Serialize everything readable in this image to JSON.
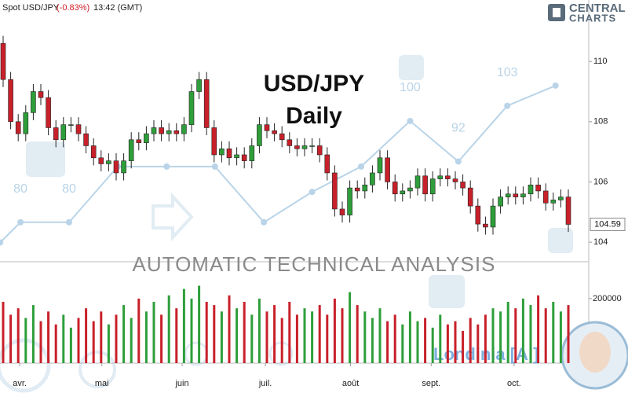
{
  "chart_data": {
    "type": "candlestick",
    "symbol": "Spot USD/JPY",
    "change": "(-0.83%)",
    "time": "13:42 (GMT)",
    "title": "USD/JPY",
    "subtitle": "Daily",
    "banner": "AUTOMATIC TECHNICAL ANALYSIS",
    "brand": [
      "CENTRAL",
      "CHARTS"
    ],
    "assistant": "Londinia [AI]",
    "last_price": 104.59,
    "ylim": [
      103.35,
      112.04
    ],
    "yticks": [
      104,
      106,
      108,
      110
    ],
    "xticks": [
      {
        "value": 2.2,
        "label": "avr."
      },
      {
        "value": 13.1,
        "label": "mai"
      },
      {
        "value": 23.75,
        "label": "juin"
      },
      {
        "value": 34.8,
        "label": "juil."
      },
      {
        "value": 46.1,
        "label": "août"
      },
      {
        "value": 56.8,
        "label": "sept."
      },
      {
        "value": 67.8,
        "label": "oct."
      }
    ],
    "up_color": "#2e9e3a",
    "down_color": "#c8202a",
    "open": [
      110.6,
      109.4,
      108.0,
      107.6,
      108.3,
      109.0,
      108.8,
      107.8,
      107.4,
      107.9,
      107.9,
      107.6,
      107.2,
      106.8,
      106.6,
      106.7,
      106.3,
      106.7,
      107.4,
      107.3,
      107.6,
      107.8,
      107.6,
      107.7,
      107.6,
      107.9,
      109.0,
      109.4,
      107.8,
      106.9,
      107.1,
      106.8,
      106.9,
      106.7,
      107.2,
      107.9,
      107.7,
      107.6,
      107.4,
      107.2,
      107.1,
      107.2,
      107.2,
      106.9,
      106.3,
      105.1,
      104.9,
      105.8,
      105.7,
      105.9,
      106.3,
      106.8,
      106.0,
      105.6,
      105.7,
      105.8,
      106.2,
      105.6,
      106.1,
      106.2,
      106.1,
      106.0,
      105.8,
      105.2,
      104.6,
      104.5,
      105.2,
      105.5,
      105.6,
      105.5,
      105.6,
      105.9,
      105.7,
      105.3,
      105.4,
      105.5
    ],
    "high": [
      110.85,
      109.65,
      108.25,
      108.55,
      109.25,
      109.25,
      109.05,
      108.05,
      108.15,
      108.15,
      108.15,
      107.85,
      107.45,
      107.05,
      106.95,
      106.95,
      106.95,
      107.65,
      107.65,
      107.85,
      108.05,
      108.05,
      107.95,
      107.95,
      108.15,
      109.25,
      109.65,
      109.65,
      108.05,
      107.35,
      107.35,
      107.15,
      107.15,
      107.45,
      108.15,
      108.15,
      107.95,
      107.85,
      107.65,
      107.45,
      107.45,
      107.45,
      107.45,
      107.15,
      106.55,
      105.35,
      106.05,
      106.05,
      106.15,
      106.55,
      107.05,
      107.05,
      106.25,
      105.95,
      106.05,
      106.45,
      106.45,
      106.35,
      106.45,
      106.45,
      106.35,
      106.25,
      106.05,
      105.45,
      104.85,
      105.45,
      105.75,
      105.85,
      105.85,
      105.85,
      106.15,
      106.15,
      105.95,
      105.65,
      105.75,
      105.75
    ],
    "low": [
      109.15,
      107.75,
      107.35,
      107.35,
      108.05,
      108.55,
      107.55,
      107.15,
      107.15,
      107.65,
      107.35,
      106.95,
      106.55,
      106.35,
      106.35,
      106.05,
      106.05,
      106.45,
      107.05,
      107.05,
      107.35,
      107.35,
      107.35,
      107.35,
      107.35,
      107.65,
      108.75,
      107.55,
      106.65,
      106.65,
      106.55,
      106.55,
      106.45,
      106.45,
      106.95,
      107.45,
      107.35,
      107.15,
      106.95,
      106.85,
      106.85,
      106.95,
      106.65,
      106.05,
      104.85,
      104.65,
      104.65,
      105.45,
      105.45,
      105.65,
      106.05,
      105.75,
      105.35,
      105.35,
      105.45,
      105.55,
      105.35,
      105.35,
      105.85,
      105.85,
      105.75,
      105.55,
      104.95,
      104.35,
      104.25,
      104.25,
      104.95,
      105.25,
      105.25,
      105.25,
      105.35,
      105.45,
      105.05,
      105.05,
      105.15,
      104.34
    ],
    "close": [
      109.4,
      108.0,
      107.6,
      108.3,
      109.0,
      108.8,
      107.8,
      107.4,
      107.9,
      107.9,
      107.6,
      107.2,
      106.8,
      106.6,
      106.7,
      106.3,
      106.7,
      107.4,
      107.3,
      107.6,
      107.8,
      107.6,
      107.7,
      107.6,
      107.9,
      109.0,
      109.4,
      107.8,
      106.9,
      107.1,
      106.8,
      106.9,
      106.7,
      107.2,
      107.9,
      107.7,
      107.6,
      107.4,
      107.2,
      107.1,
      107.2,
      107.2,
      106.9,
      106.3,
      105.1,
      104.9,
      105.8,
      105.7,
      105.9,
      106.3,
      106.8,
      106.0,
      105.6,
      105.7,
      105.8,
      106.2,
      105.6,
      106.1,
      106.2,
      106.1,
      106.0,
      105.8,
      105.2,
      104.6,
      104.5,
      105.2,
      105.5,
      105.6,
      105.5,
      105.6,
      105.9,
      105.7,
      105.3,
      105.4,
      105.5,
      104.59
    ],
    "volume": {
      "values": [
        190000,
        150000,
        170000,
        140000,
        180000,
        130000,
        160000,
        120000,
        150000,
        110000,
        140000,
        170000,
        130000,
        160000,
        120000,
        150000,
        180000,
        140000,
        200000,
        160000,
        190000,
        150000,
        210000,
        170000,
        230000,
        200000,
        240000,
        190000,
        180000,
        160000,
        210000,
        170000,
        190000,
        150000,
        200000,
        160000,
        180000,
        140000,
        190000,
        150000,
        170000,
        160000,
        180000,
        150000,
        200000,
        170000,
        220000,
        180000,
        160000,
        140000,
        170000,
        130000,
        150000,
        120000,
        160000,
        130000,
        140000,
        110000,
        150000,
        120000,
        130000,
        100000,
        140000,
        120000,
        150000,
        170000,
        160000,
        190000,
        170000,
        200000,
        180000,
        210000,
        170000,
        190000,
        160000,
        180000
      ],
      "ylim": [
        0,
        285000
      ],
      "yticks": [
        200000
      ]
    },
    "indicator": {
      "color": "#b9d4e8",
      "x": [
        -0.4,
        2.3,
        8.75,
        15.2,
        21.7,
        28.1,
        34.6,
        41.0,
        47.5,
        54.0,
        60.4,
        66.9,
        73.3
      ],
      "values": [
        76,
        80,
        80,
        91,
        91,
        91,
        80,
        86,
        91,
        100,
        92,
        103,
        107
      ],
      "value_labels": [
        null,
        "80",
        "80",
        null,
        null,
        null,
        null,
        null,
        null,
        "100",
        "92",
        "103",
        null
      ],
      "ylim": [
        72.2,
        123.9
      ]
    }
  }
}
